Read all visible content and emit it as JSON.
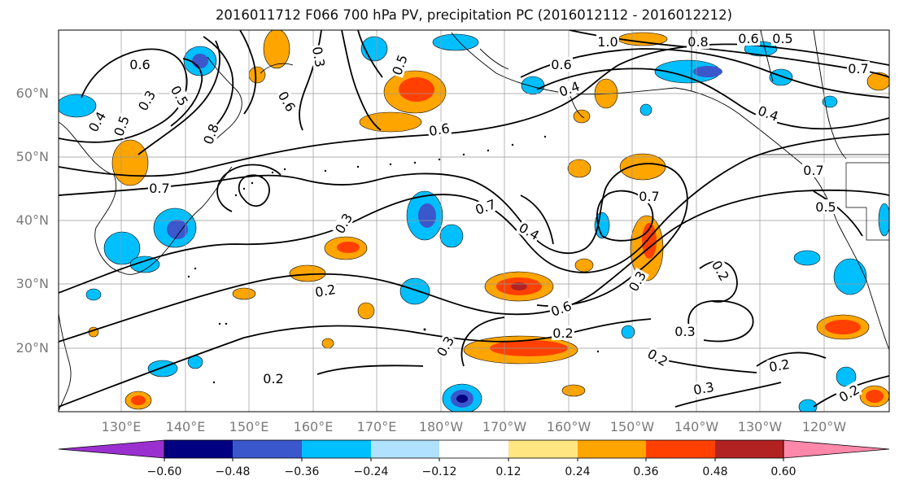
{
  "title": "2016011712 F066 700 hPa PV, precipitation PC (2016012112 - 2016012212)",
  "map": {
    "lat_labels": [
      "60°N",
      "50°N",
      "40°N",
      "30°N",
      "20°N"
    ],
    "lon_labels": [
      "130°E",
      "140°E",
      "150°E",
      "160°E",
      "170°E",
      "180°W",
      "170°W",
      "160°W",
      "150°W",
      "140°W",
      "130°W",
      "120°W"
    ],
    "contour_labels": [
      {
        "text": "0.6"
      },
      {
        "text": "0.3"
      },
      {
        "text": "0.4"
      },
      {
        "text": "0.5"
      },
      {
        "text": "0.5"
      },
      {
        "text": "0.8"
      },
      {
        "text": "0.7"
      },
      {
        "text": "0.3"
      },
      {
        "text": "0.5"
      },
      {
        "text": "0.6"
      },
      {
        "text": "1.0"
      },
      {
        "text": "0.8"
      },
      {
        "text": "0.6"
      },
      {
        "text": "0.5"
      },
      {
        "text": "0.7"
      },
      {
        "text": "0.4"
      },
      {
        "text": "0.4"
      },
      {
        "text": "0.6"
      },
      {
        "text": "0.6"
      },
      {
        "text": "0.5"
      },
      {
        "text": "0.7"
      },
      {
        "text": "0.4"
      },
      {
        "text": "0.3"
      },
      {
        "text": "0.7"
      },
      {
        "text": "0.2"
      },
      {
        "text": "0.3"
      },
      {
        "text": "0.6"
      },
      {
        "text": "0.2"
      },
      {
        "text": "0.3"
      },
      {
        "text": "0.2"
      },
      {
        "text": "0.2"
      },
      {
        "text": "0.3"
      },
      {
        "text": "0.2"
      },
      {
        "text": "0.2"
      },
      {
        "text": "0.3"
      },
      {
        "text": "0.2"
      },
      {
        "text": "0.7"
      }
    ]
  },
  "colorbar": {
    "ticks": [
      "−0.60",
      "−0.48",
      "−0.36",
      "−0.24",
      "−0.12",
      "0.12",
      "0.24",
      "0.36",
      "0.48",
      "0.60"
    ],
    "colors": [
      "#9b30d0",
      "#000080",
      "#3a57cc",
      "#00bfff",
      "#b0e2ff",
      "#ffffff",
      "#ffe680",
      "#ffa500",
      "#ff4000",
      "#b22222",
      "#ff88aa"
    ]
  }
}
